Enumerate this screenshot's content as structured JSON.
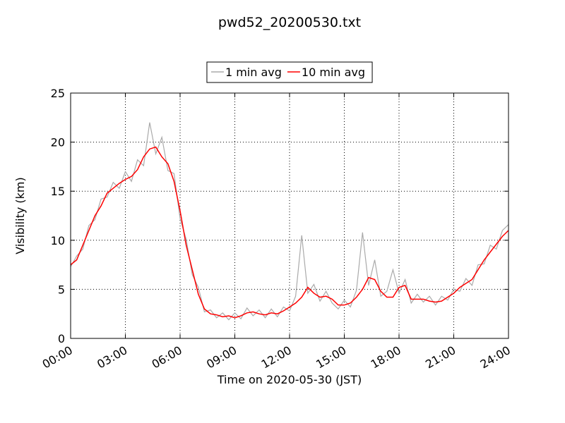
{
  "chart_data": {
    "type": "line",
    "title": "pwd52_20200530.txt",
    "x_label": "Time on 2020-05-30 (JST)",
    "y_label": "Visibility (km)",
    "x": [
      0,
      0.333,
      0.667,
      1,
      1.333,
      1.667,
      2,
      2.333,
      2.667,
      3,
      3.333,
      3.667,
      4,
      4.333,
      4.667,
      5,
      5.333,
      5.667,
      6,
      6.333,
      6.667,
      7,
      7.333,
      7.667,
      8,
      8.333,
      8.667,
      9,
      9.333,
      9.667,
      10,
      10.333,
      10.667,
      11,
      11.333,
      11.667,
      12,
      12.333,
      12.667,
      13,
      13.333,
      13.667,
      14,
      14.333,
      14.667,
      15,
      15.333,
      15.667,
      16,
      16.333,
      16.667,
      17,
      17.333,
      17.667,
      18,
      18.333,
      18.667,
      19,
      19.333,
      19.667,
      20,
      20.333,
      20.667,
      21,
      21.333,
      21.667,
      22,
      22.333,
      22.667,
      23,
      23.333,
      23.667,
      24
    ],
    "series": [
      {
        "name": "1 min avg",
        "color": "#aaaaaa",
        "values": [
          7.3,
          8.4,
          9.1,
          11.5,
          12.1,
          14.2,
          14.4,
          15.9,
          15.3,
          17.0,
          16.0,
          18.2,
          17.6,
          22.0,
          18.8,
          20.5,
          17.1,
          16.8,
          12.2,
          10.1,
          6.5,
          5.2,
          2.7,
          2.9,
          2.1,
          2.6,
          1.9,
          2.6,
          2.0,
          3.1,
          2.3,
          2.9,
          2.1,
          3.0,
          2.2,
          3.2,
          2.8,
          4.3,
          10.5,
          4.6,
          5.5,
          3.8,
          4.8,
          3.6,
          3.0,
          3.9,
          3.2,
          4.9,
          10.8,
          5.4,
          8.0,
          4.3,
          4.8,
          7.0,
          4.6,
          6.0,
          3.6,
          4.5,
          3.7,
          4.3,
          3.4,
          4.3,
          3.9,
          5.0,
          4.8,
          6.1,
          5.4,
          7.5,
          7.6,
          9.5,
          9.1,
          11.0,
          11.6
        ]
      },
      {
        "name": "10 min avg",
        "color": "#ff0000",
        "values": [
          7.5,
          8,
          9.5,
          11,
          12.5,
          13.5,
          14.8,
          15.3,
          15.8,
          16.2,
          16.5,
          17.2,
          18.5,
          19.3,
          19.5,
          18.5,
          17.8,
          16,
          13,
          9.5,
          7,
          4.5,
          3,
          2.5,
          2.4,
          2.2,
          2.3,
          2.1,
          2.3,
          2.6,
          2.7,
          2.5,
          2.4,
          2.6,
          2.5,
          2.8,
          3.2,
          3.6,
          4.2,
          5.2,
          4.6,
          4.2,
          4.3,
          4.0,
          3.4,
          3.4,
          3.6,
          4.2,
          5,
          6.2,
          6.0,
          4.8,
          4.2,
          4.2,
          5.2,
          5.4,
          4.0,
          4.0,
          4.0,
          3.8,
          3.7,
          3.8,
          4.2,
          4.6,
          5.2,
          5.6,
          6.0,
          7.0,
          8.0,
          8.8,
          9.6,
          10.4,
          11.0
        ]
      }
    ],
    "xlim": [
      0,
      24
    ],
    "xticks": [
      {
        "value": 0,
        "label": "00:00"
      },
      {
        "value": 3,
        "label": "03:00"
      },
      {
        "value": 6,
        "label": "06:00"
      },
      {
        "value": 9,
        "label": "09:00"
      },
      {
        "value": 12,
        "label": "12:00"
      },
      {
        "value": 15,
        "label": "15:00"
      },
      {
        "value": 18,
        "label": "18:00"
      },
      {
        "value": 21,
        "label": "21:00"
      },
      {
        "value": 24,
        "label": "24:00"
      }
    ],
    "ylim": [
      0,
      25
    ],
    "yticks": [
      0,
      5,
      10,
      15,
      20,
      25
    ],
    "grid": true,
    "legend": "top"
  }
}
